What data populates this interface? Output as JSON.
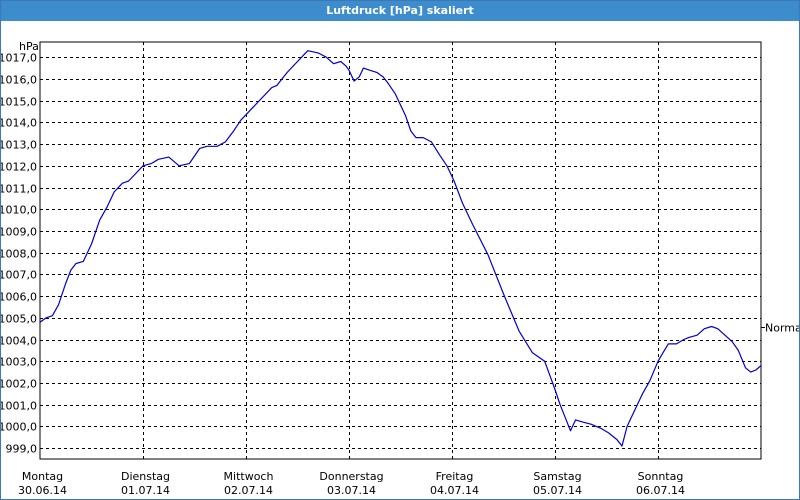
{
  "window": {
    "title": "Luftdruck [hPa] skaliert"
  },
  "chart_data": {
    "type": "line",
    "title": "Luftdruck [hPa] skaliert",
    "ylabel": "hPa",
    "ylim": [
      998.5,
      1017.7
    ],
    "xlim": [
      0,
      7
    ],
    "yticks": [
      "999,0",
      "1000,0",
      "1001,0",
      "1002,0",
      "1003,0",
      "1004,0",
      "1005,0",
      "1006,0",
      "1007,0",
      "1008,0",
      "1009,0",
      "1010,0",
      "1011,0",
      "1012,0",
      "1013,0",
      "1014,0",
      "1015,0",
      "1016,0",
      "1017,0"
    ],
    "ytick_values": [
      999,
      1000,
      1001,
      1002,
      1003,
      1004,
      1005,
      1006,
      1007,
      1008,
      1009,
      1010,
      1011,
      1012,
      1013,
      1014,
      1015,
      1016,
      1017
    ],
    "xticks": [
      {
        "pos": 0,
        "day": "Montag",
        "date": "30.06.14"
      },
      {
        "pos": 1,
        "day": "Dienstag",
        "date": "01.07.14"
      },
      {
        "pos": 2,
        "day": "Mittwoch",
        "date": "02.07.14"
      },
      {
        "pos": 3,
        "day": "Donnerstag",
        "date": "03.07.14"
      },
      {
        "pos": 4,
        "day": "Freitag",
        "date": "04.07.14"
      },
      {
        "pos": 5,
        "day": "Samstag",
        "date": "05.07.14"
      },
      {
        "pos": 6,
        "day": "Sonntag",
        "date": "06.07.14"
      }
    ],
    "grid": true,
    "reference": {
      "label": "Normal",
      "value": 1004.6
    },
    "series": [
      {
        "color": "#0000cc",
        "x": [
          0,
          0.06,
          0.12,
          0.18,
          0.25,
          0.3,
          0.35,
          0.42,
          0.5,
          0.58,
          0.65,
          0.72,
          0.8,
          0.86,
          0.92,
          1.0,
          1.08,
          1.15,
          1.25,
          1.35,
          1.45,
          1.55,
          1.62,
          1.68,
          1.72,
          1.8,
          1.88,
          1.95,
          2.05,
          2.15,
          2.25,
          2.3,
          2.4,
          2.5,
          2.6,
          2.7,
          2.78,
          2.85,
          2.92,
          2.97,
          3.0,
          3.02,
          3.05,
          3.1,
          3.14,
          3.2,
          3.27,
          3.33,
          3.38,
          3.45,
          3.5,
          3.55,
          3.6,
          3.65,
          3.72,
          3.8,
          3.88,
          3.95,
          4.02,
          4.1,
          4.2,
          4.35,
          4.5,
          4.65,
          4.78,
          4.9,
          5.0,
          5.05,
          5.1,
          5.15,
          5.2,
          5.27,
          5.35,
          5.45,
          5.52,
          5.6,
          5.65,
          5.7,
          5.78,
          5.85,
          5.92,
          6.0,
          6.05,
          6.1,
          6.18,
          6.25,
          6.3,
          6.38,
          6.45,
          6.52,
          6.58,
          6.65,
          6.72,
          6.78,
          6.85,
          6.9,
          6.95,
          7.0
        ],
        "values": [
          1004.8,
          1005.0,
          1005.1,
          1005.6,
          1006.6,
          1007.2,
          1007.5,
          1007.6,
          1008.4,
          1009.5,
          1010.1,
          1010.8,
          1011.2,
          1011.3,
          1011.6,
          1012.0,
          1012.1,
          1012.3,
          1012.4,
          1012.0,
          1012.1,
          1012.8,
          1012.9,
          1012.9,
          1012.9,
          1013.1,
          1013.6,
          1014.1,
          1014.6,
          1015.1,
          1015.6,
          1015.7,
          1016.3,
          1016.8,
          1017.3,
          1017.2,
          1017.0,
          1016.7,
          1016.8,
          1016.6,
          1016.4,
          1016.2,
          1015.9,
          1016.1,
          1016.5,
          1016.4,
          1016.3,
          1016.1,
          1015.8,
          1015.3,
          1014.8,
          1014.3,
          1013.6,
          1013.3,
          1013.3,
          1013.1,
          1012.5,
          1012.0,
          1011.3,
          1010.3,
          1009.3,
          1007.9,
          1006.1,
          1004.4,
          1003.4,
          1003.0,
          1001.7,
          1001.0,
          1000.4,
          999.8,
          1000.3,
          1000.2,
          1000.1,
          999.9,
          999.7,
          999.4,
          999.1,
          1000.0,
          1000.8,
          1001.5,
          1002.1,
          1003.0,
          1003.4,
          1003.8,
          1003.8,
          1004.0,
          1004.1,
          1004.2,
          1004.5,
          1004.6,
          1004.5,
          1004.2,
          1003.9,
          1003.5,
          1002.7,
          1002.5,
          1002.6,
          1002.8
        ]
      }
    ]
  }
}
